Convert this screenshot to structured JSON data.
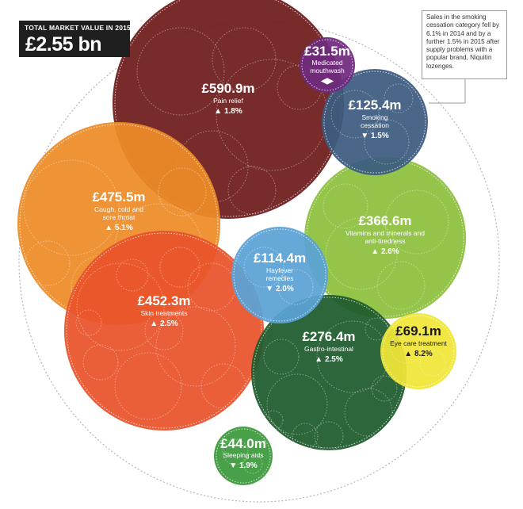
{
  "header": {
    "total_label": "TOTAL MARKET VALUE IN 2015:",
    "total_value": "£2.55 bn"
  },
  "note": {
    "text": "Sales in the smoking cessation category fell by 6.1% in 2014 and by a further 1.5% in 2015 after supply problems with a popular brand, Niquitin lozenges."
  },
  "chart_data": {
    "type": "bubble",
    "title": "TOTAL MARKET VALUE IN 2015:",
    "total": "£2.55 bn",
    "unit": "£m",
    "series": [
      {
        "name": "Pain relief",
        "value": 590.9,
        "value_label": "£590.9m",
        "change": "1.8%",
        "direction": "up",
        "color": "#6d1b1b",
        "lines": [
          "Pain relief"
        ],
        "text_dark": false
      },
      {
        "name": "Cough, cold and sore throat",
        "value": 475.5,
        "value_label": "£475.5m",
        "change": "5.1%",
        "direction": "up",
        "color": "#ee8c27",
        "lines": [
          "Cough, cold and",
          "sore throat"
        ],
        "text_dark": false
      },
      {
        "name": "Skin treatments",
        "value": 452.3,
        "value_label": "£452.3m",
        "change": "2.5%",
        "direction": "up",
        "color": "#e8532a",
        "lines": [
          "Skin treatments"
        ],
        "text_dark": false
      },
      {
        "name": "Vitamins and minerals and anti-tiredness",
        "value": 366.6,
        "value_label": "£366.6m",
        "change": "2.6%",
        "direction": "up",
        "color": "#8cbf3c",
        "lines": [
          "Vitamins and minerals and",
          "anti-tiredness"
        ],
        "text_dark": false
      },
      {
        "name": "Gastro-intestinal",
        "value": 276.4,
        "value_label": "£276.4m",
        "change": "2.5%",
        "direction": "up",
        "color": "#1e5a2c",
        "lines": [
          "Gastro-intestinal"
        ],
        "text_dark": false
      },
      {
        "name": "Smoking cessation",
        "value": 125.4,
        "value_label": "£125.4m",
        "change": "1.5%",
        "direction": "down",
        "color": "#3c5b80",
        "lines": [
          "Smoking",
          "cessation"
        ],
        "text_dark": false
      },
      {
        "name": "Hayfever remedies",
        "value": 114.4,
        "value_label": "£114.4m",
        "change": "2.0%",
        "direction": "down",
        "color": "#5aa2d6",
        "lines": [
          "Hayfever",
          "remedies"
        ],
        "text_dark": false
      },
      {
        "name": "Eye care treatment",
        "value": 69.1,
        "value_label": "£69.1m",
        "change": "8.2%",
        "direction": "up",
        "color": "#f0e637",
        "lines": [
          "Eye care treatment"
        ],
        "text_dark": true
      },
      {
        "name": "Sleeping aids",
        "value": 44.0,
        "value_label": "£44.0m",
        "change": "1.9%",
        "direction": "down",
        "color": "#3a9a3a",
        "lines": [
          "Sleeping aids"
        ],
        "text_dark": false
      },
      {
        "name": "Medicated mouthwash",
        "value": 31.5,
        "value_label": "£31.5m",
        "change": "",
        "direction": "flat",
        "color": "#6f2a7e",
        "lines": [
          "Medicated",
          "mouthwash"
        ],
        "text_dark": false
      }
    ]
  }
}
